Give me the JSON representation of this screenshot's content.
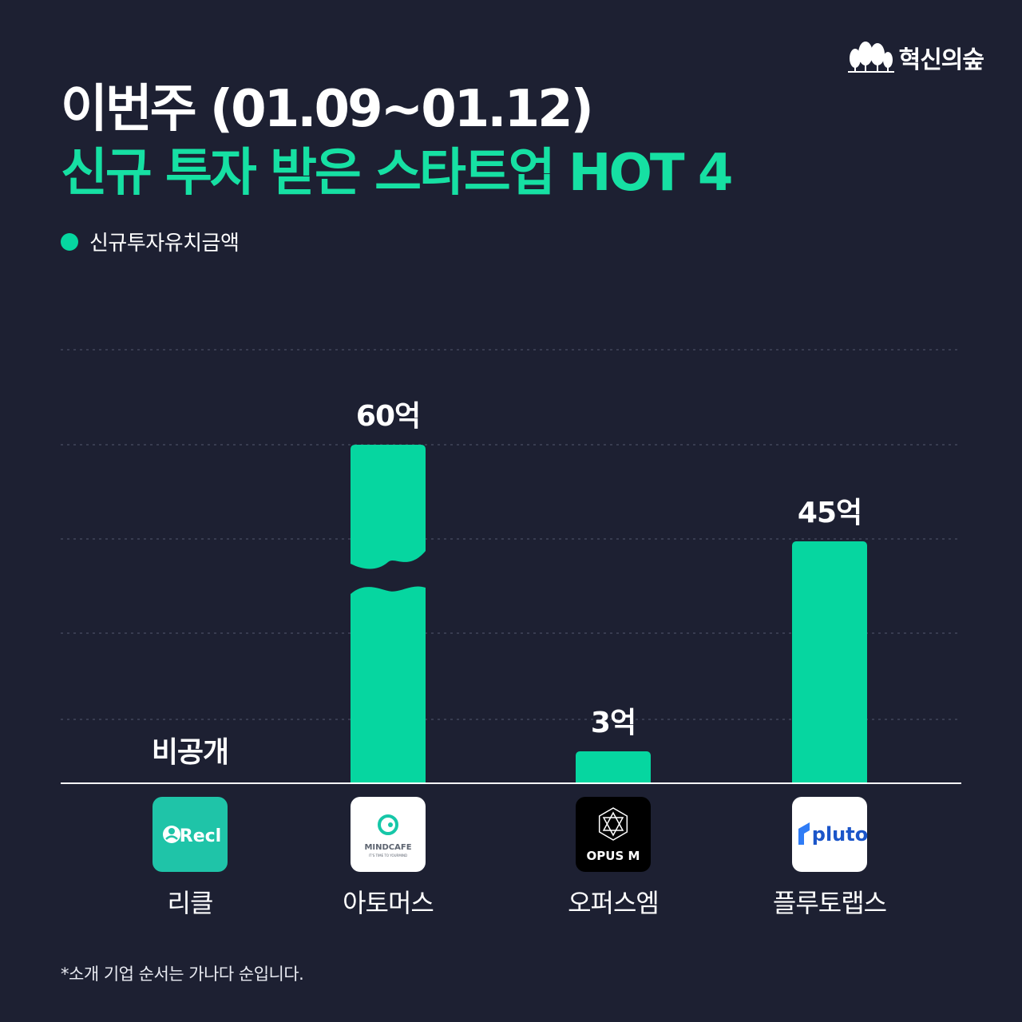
{
  "brand": {
    "name": "혁신의숲",
    "icon": "tree-icon"
  },
  "title": {
    "line1": "이번주 (01.09~01.12)",
    "line2": "신규 투자 받은 스타트업 HOT 4"
  },
  "footnote": "*소개 기업 순서는 가나다 순입니다.",
  "colors": {
    "background": "#1d2032",
    "accent": "#06d6a0",
    "title_accent": "#16e0a3",
    "grid": "#4a4e63"
  },
  "chart_data": {
    "type": "bar",
    "categories": [
      "리클",
      "아토머스",
      "오퍼스엠",
      "플루토랩스"
    ],
    "series": [
      {
        "name": "신규투자유치금액",
        "values": [
          null,
          60,
          3,
          45
        ]
      }
    ],
    "data_labels": [
      "비공개",
      "60억",
      "3억",
      "45억"
    ],
    "unit": "억",
    "axis_break": {
      "category": "아토머스"
    },
    "gridlines": true,
    "legend": "top-left",
    "logos": [
      {
        "company": "리클",
        "text": "Recl",
        "icon": "person-icon",
        "bg": "#1fc4a8",
        "fg": "#ffffff"
      },
      {
        "company": "아토머스",
        "text": "MINDCAFE",
        "subtext": "IT'S TIME TO YOURMIND",
        "icon": "mindcafe-icon",
        "bg": "#ffffff",
        "fg": "#5d6470"
      },
      {
        "company": "오퍼스엠",
        "text": "OPUS M",
        "icon": "geometric-sphere-icon",
        "bg": "#000000",
        "fg": "#ffffff"
      },
      {
        "company": "플루토랩스",
        "text": "pluto",
        "icon": "pluto-mark-icon",
        "bg": "#ffffff",
        "fg": "#1b55c9"
      }
    ]
  }
}
